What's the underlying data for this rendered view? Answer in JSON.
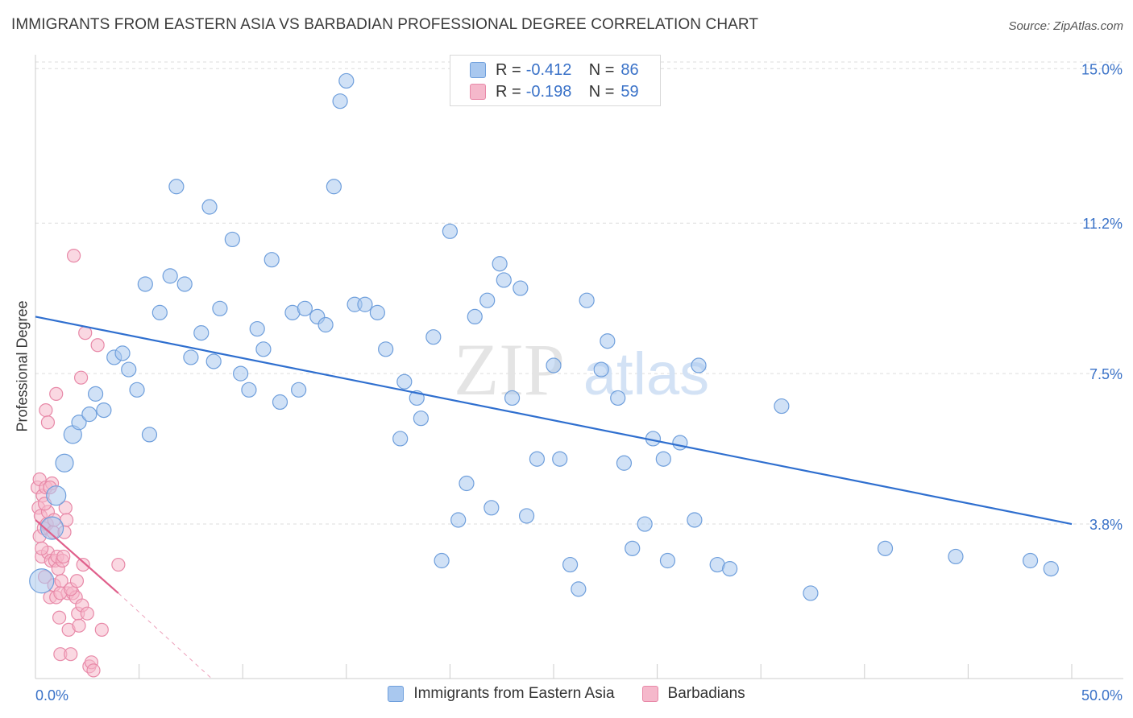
{
  "title": "IMMIGRANTS FROM EASTERN ASIA VS BARBADIAN PROFESSIONAL DEGREE CORRELATION CHART",
  "source": "Source: ZipAtlas.com",
  "watermark": {
    "zip": "ZIP",
    "atlas": "atlas"
  },
  "legend": {
    "rows": [
      {
        "r_label": "R =",
        "r_value": "-0.412",
        "n_label": "N =",
        "n_value": "86"
      },
      {
        "r_label": "R =",
        "r_value": "-0.198",
        "n_label": "N =",
        "n_value": "59"
      }
    ]
  },
  "bottom_legend": [
    "Immigrants from Eastern Asia",
    "Barbadians"
  ],
  "colors": {
    "blue_fill": "#a9c8ef",
    "blue_stroke": "#6f9fdc",
    "blue_line": "#2f6fcf",
    "pink_fill": "#f5b8cb",
    "pink_stroke": "#e889a8",
    "pink_line": "#e0608c",
    "tick_label": "#3a72c8",
    "grid": "#dddddd"
  },
  "chart_data": {
    "type": "scatter",
    "title": "IMMIGRANTS FROM EASTERN ASIA VS BARBADIAN PROFESSIONAL DEGREE CORRELATION CHART",
    "xlabel": "",
    "ylabel": "Professional Degree",
    "xlim": [
      0,
      50
    ],
    "ylim": [
      0,
      15.5
    ],
    "x_tick_labels": [
      "0.0%",
      "50.0%"
    ],
    "y_ticks": [
      3.8,
      7.5,
      11.2,
      15.0
    ],
    "y_tick_labels": [
      "3.8%",
      "7.5%",
      "11.2%",
      "15.0%"
    ],
    "grid": true,
    "series": [
      {
        "name": "Immigrants from Eastern Asia",
        "R": -0.412,
        "N": 86,
        "trend": {
          "x0": 0,
          "y0": 8.9,
          "x1": 50,
          "y1": 3.8
        },
        "points": [
          [
            0.3,
            2.4
          ],
          [
            0.8,
            3.7
          ],
          [
            1.0,
            4.5
          ],
          [
            1.4,
            5.3
          ],
          [
            1.8,
            6.0
          ],
          [
            2.1,
            6.3
          ],
          [
            2.6,
            6.5
          ],
          [
            2.9,
            7.0
          ],
          [
            3.3,
            6.6
          ],
          [
            3.8,
            7.9
          ],
          [
            4.2,
            8.0
          ],
          [
            4.5,
            7.6
          ],
          [
            4.9,
            7.1
          ],
          [
            5.3,
            9.7
          ],
          [
            5.5,
            6.0
          ],
          [
            6.0,
            9.0
          ],
          [
            6.5,
            9.9
          ],
          [
            6.8,
            12.1
          ],
          [
            7.2,
            9.7
          ],
          [
            7.5,
            7.9
          ],
          [
            8.0,
            8.5
          ],
          [
            8.4,
            11.6
          ],
          [
            8.6,
            7.8
          ],
          [
            8.9,
            9.1
          ],
          [
            9.5,
            10.8
          ],
          [
            9.9,
            7.5
          ],
          [
            10.3,
            7.1
          ],
          [
            10.7,
            8.6
          ],
          [
            11.0,
            8.1
          ],
          [
            11.4,
            10.3
          ],
          [
            11.8,
            6.8
          ],
          [
            12.4,
            9.0
          ],
          [
            12.7,
            7.1
          ],
          [
            13.0,
            9.1
          ],
          [
            13.6,
            8.9
          ],
          [
            14.0,
            8.7
          ],
          [
            14.4,
            12.1
          ],
          [
            14.7,
            14.2
          ],
          [
            15.0,
            14.7
          ],
          [
            15.4,
            9.2
          ],
          [
            15.9,
            9.2
          ],
          [
            16.5,
            9.0
          ],
          [
            16.9,
            8.1
          ],
          [
            17.6,
            5.9
          ],
          [
            17.8,
            7.3
          ],
          [
            18.4,
            6.9
          ],
          [
            18.6,
            6.4
          ],
          [
            19.2,
            8.4
          ],
          [
            19.6,
            2.9
          ],
          [
            20.0,
            11.0
          ],
          [
            20.4,
            3.9
          ],
          [
            20.8,
            4.8
          ],
          [
            21.2,
            8.9
          ],
          [
            21.8,
            9.3
          ],
          [
            22.0,
            4.2
          ],
          [
            22.4,
            10.2
          ],
          [
            22.6,
            9.8
          ],
          [
            23.0,
            6.9
          ],
          [
            23.4,
            9.6
          ],
          [
            23.7,
            4.0
          ],
          [
            24.2,
            5.4
          ],
          [
            25.0,
            7.7
          ],
          [
            25.3,
            5.4
          ],
          [
            25.8,
            2.8
          ],
          [
            26.2,
            2.2
          ],
          [
            26.6,
            9.3
          ],
          [
            27.3,
            7.6
          ],
          [
            27.6,
            8.3
          ],
          [
            28.1,
            6.9
          ],
          [
            28.4,
            5.3
          ],
          [
            28.8,
            3.2
          ],
          [
            29.4,
            3.8
          ],
          [
            29.8,
            5.9
          ],
          [
            30.3,
            5.4
          ],
          [
            30.5,
            2.9
          ],
          [
            31.1,
            5.8
          ],
          [
            31.8,
            3.9
          ],
          [
            32.0,
            7.7
          ],
          [
            32.9,
            2.8
          ],
          [
            33.5,
            2.7
          ],
          [
            36.0,
            6.7
          ],
          [
            37.4,
            2.1
          ],
          [
            41.0,
            3.2
          ],
          [
            44.4,
            3.0
          ],
          [
            48.0,
            2.9
          ],
          [
            49.0,
            2.7
          ]
        ]
      },
      {
        "name": "Barbadians",
        "R": -0.198,
        "N": 59,
        "trend": {
          "x0": 0,
          "y0": 3.9,
          "x1": 4.0,
          "y1": 2.1,
          "dash_x1": 8.5,
          "dash_y1": 0
        },
        "points": [
          [
            0.1,
            4.7
          ],
          [
            0.15,
            4.2
          ],
          [
            0.2,
            3.5
          ],
          [
            0.2,
            4.9
          ],
          [
            0.25,
            4.0
          ],
          [
            0.3,
            3.0
          ],
          [
            0.35,
            4.5
          ],
          [
            0.4,
            3.7
          ],
          [
            0.45,
            2.5
          ],
          [
            0.5,
            4.7
          ],
          [
            0.5,
            6.6
          ],
          [
            0.55,
            3.8
          ],
          [
            0.6,
            3.1
          ],
          [
            0.6,
            6.3
          ],
          [
            0.7,
            2.0
          ],
          [
            0.75,
            2.9
          ],
          [
            0.8,
            4.8
          ],
          [
            0.85,
            3.6
          ],
          [
            0.9,
            2.3
          ],
          [
            0.95,
            2.9
          ],
          [
            1.0,
            2.0
          ],
          [
            1.0,
            7.0
          ],
          [
            1.05,
            3.0
          ],
          [
            1.1,
            2.7
          ],
          [
            1.15,
            1.5
          ],
          [
            1.2,
            0.6
          ],
          [
            1.25,
            2.4
          ],
          [
            1.3,
            2.9
          ],
          [
            1.35,
            3.0
          ],
          [
            1.4,
            3.6
          ],
          [
            1.45,
            4.2
          ],
          [
            1.5,
            3.9
          ],
          [
            1.55,
            2.1
          ],
          [
            1.6,
            1.2
          ],
          [
            1.7,
            0.6
          ],
          [
            1.8,
            2.1
          ],
          [
            1.85,
            10.4
          ],
          [
            1.95,
            2.0
          ],
          [
            2.05,
            1.6
          ],
          [
            2.1,
            1.3
          ],
          [
            2.2,
            7.4
          ],
          [
            2.25,
            1.8
          ],
          [
            2.3,
            2.8
          ],
          [
            2.4,
            8.5
          ],
          [
            2.5,
            1.6
          ],
          [
            2.6,
            0.3
          ],
          [
            2.7,
            0.4
          ],
          [
            2.8,
            0.2
          ],
          [
            3.0,
            8.2
          ],
          [
            3.2,
            1.2
          ],
          [
            0.3,
            3.2
          ],
          [
            0.6,
            4.1
          ],
          [
            0.9,
            3.9
          ],
          [
            1.2,
            2.1
          ],
          [
            0.45,
            4.3
          ],
          [
            0.7,
            4.7
          ],
          [
            1.7,
            2.2
          ],
          [
            2.0,
            2.4
          ],
          [
            4.0,
            2.8
          ]
        ]
      }
    ]
  }
}
